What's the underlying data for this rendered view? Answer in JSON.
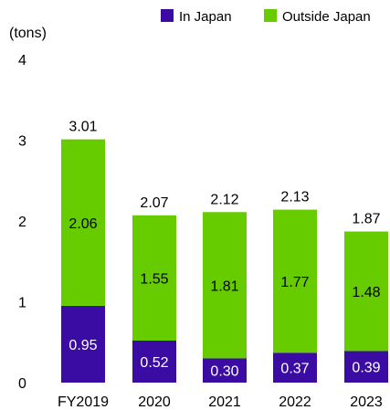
{
  "chart_data": {
    "type": "bar",
    "stacked": true,
    "unit_label": "(tons)",
    "categories": [
      "FY2019",
      "2020",
      "2021",
      "2022",
      "2023"
    ],
    "series": [
      {
        "name": "In Japan",
        "color": "#3a0ca3",
        "values": [
          0.95,
          0.52,
          0.3,
          0.37,
          0.39
        ],
        "labels": [
          "0.95",
          "0.52",
          "0.30",
          "0.37",
          "0.39"
        ]
      },
      {
        "name": "Outside Japan",
        "color": "#66cc00",
        "values": [
          2.06,
          1.55,
          1.81,
          1.77,
          1.48
        ],
        "labels": [
          "2.06",
          "1.55",
          "1.81",
          "1.77",
          "1.48"
        ]
      }
    ],
    "totals": [
      "3.01",
      "2.07",
      "2.12",
      "2.13",
      "1.87"
    ],
    "total_values": [
      3.01,
      2.07,
      2.12,
      2.13,
      1.87
    ],
    "ylim": [
      0,
      4
    ],
    "y_ticks": [
      "0",
      "1",
      "2",
      "3",
      "4"
    ],
    "grid": false,
    "legend_position": "top-right"
  }
}
